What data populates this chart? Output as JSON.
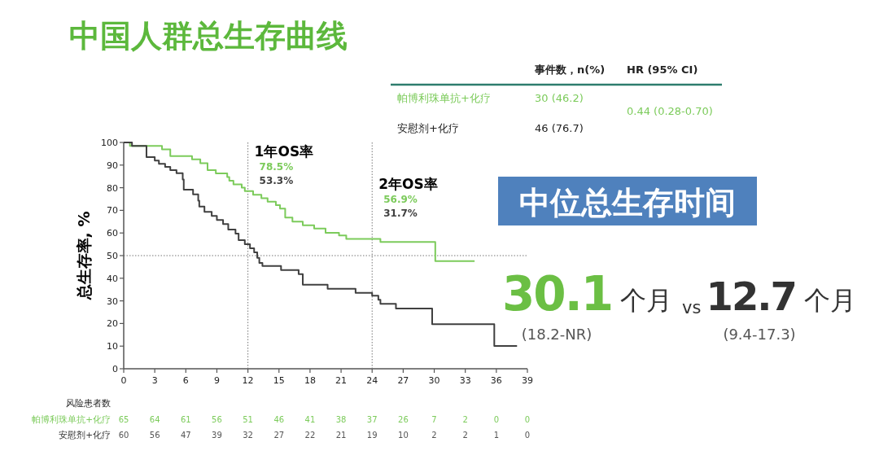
{
  "chart_data": {
    "type": "step",
    "title": "中国人群总生存曲线",
    "ylabel": "总生存率, %",
    "xlim": [
      0,
      39
    ],
    "xticks": [
      0,
      3,
      6,
      9,
      12,
      15,
      18,
      21,
      24,
      27,
      30,
      33,
      36,
      39
    ],
    "ylim": [
      0,
      100
    ],
    "yticks": [
      0,
      10,
      20,
      30,
      40,
      50,
      60,
      70,
      80,
      90,
      100
    ],
    "grid": false,
    "ref_lines": [
      {
        "axis": "y",
        "value": 50,
        "line_style": "dotted",
        "color": "#777777"
      },
      {
        "axis": "x",
        "value": 12,
        "label": "1年OS率",
        "line_style": "dotted",
        "color": "#777777"
      },
      {
        "axis": "x",
        "value": 24,
        "label": "2年OS率",
        "line_style": "dotted",
        "color": "#777777"
      }
    ],
    "series": [
      {
        "name": "帕博利珠单抗+化疗",
        "color": "#7ccb5b",
        "x": [
          0,
          0.6,
          3.7,
          4.5,
          6.6,
          7.4,
          8.1,
          8.9,
          10.0,
          10.2,
          10.6,
          11.4,
          11.7,
          12.5,
          13.3,
          13.9,
          14.7,
          15.1,
          15.6,
          16.3,
          17.3,
          18.4,
          19.5,
          20.8,
          21.5,
          24.8,
          30.1,
          33.9
        ],
        "values": [
          100,
          98.5,
          96.9,
          94.0,
          92.5,
          90.8,
          87.8,
          86.3,
          84.7,
          83.1,
          81.5,
          80.0,
          78.5,
          76.9,
          75.4,
          73.8,
          72.3,
          70.8,
          66.8,
          65.0,
          63.4,
          62.0,
          60.1,
          58.9,
          57.4,
          56.0,
          47.6,
          47.6
        ]
      },
      {
        "name": "安慰剂+化疗",
        "color": "#404040",
        "x": [
          0,
          0.8,
          2.2,
          3.0,
          3.4,
          4.0,
          4.5,
          5.1,
          5.7,
          5.8,
          6.7,
          7.2,
          7.3,
          7.8,
          8.5,
          9.0,
          9.6,
          10.1,
          10.8,
          11.1,
          11.7,
          12.2,
          12.6,
          12.9,
          13.1,
          13.4,
          15.2,
          16.9,
          17.3,
          19.7,
          22.4,
          24.0,
          24.6,
          24.8,
          26.3,
          29.8,
          35.8,
          38.0
        ],
        "values": [
          100,
          98.5,
          93.5,
          92.0,
          90.6,
          89.2,
          87.8,
          86.4,
          83.6,
          79.1,
          77.1,
          74.3,
          71.7,
          69.3,
          67.5,
          65.7,
          63.9,
          61.5,
          59.7,
          56.8,
          55.0,
          53.2,
          51.4,
          49.0,
          46.8,
          45.4,
          43.6,
          41.8,
          37.1,
          35.3,
          33.5,
          32.3,
          30.5,
          28.7,
          26.6,
          19.7,
          10.1,
          10.1
        ]
      }
    ],
    "annotations": [
      "78.5%",
      "53.3%",
      "56.9%",
      "31.7%",
      "事件数，n(%)",
      "HR (95% CI)",
      "30 (46.2)",
      "46 (76.7)",
      "0.44 (0.28-0.70)",
      "中位总生存时间",
      "30.1",
      "个月",
      "vs",
      "12.7",
      "个月",
      "(18.2-NR)",
      "(9.4-17.3)",
      "风险患者数",
      "65 64 61 56 51 46 41 38 37 26 7 2 0 0",
      "60 56 47 39 32 27 22 21 19 10 2 2 1 0"
    ]
  }
}
